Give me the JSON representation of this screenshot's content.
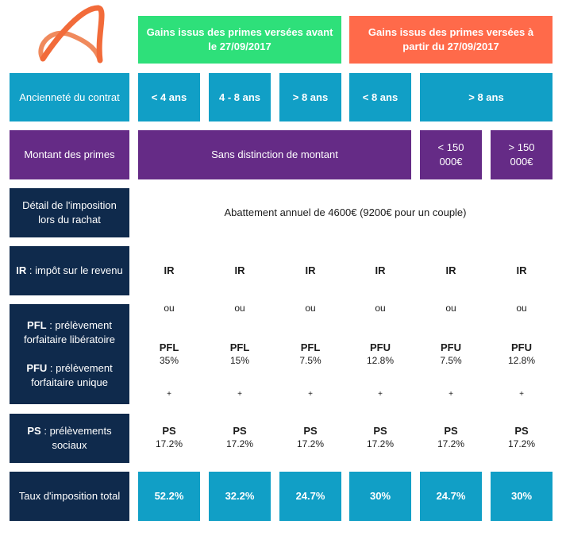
{
  "header": {
    "before": "Gains issus des primes versées avant le 27/09/2017",
    "after": "Gains issus des primes versées à partir du 27/09/2017"
  },
  "rows": {
    "anciennete": {
      "label": "Ancienneté du contrat",
      "cols": [
        "< 4 ans",
        "4 - 8 ans",
        "> 8 ans",
        "< 8 ans",
        "> 8 ans"
      ]
    },
    "montant": {
      "label": "Montant des primes",
      "merged": "Sans distinction de montant",
      "lt": "< 150 000€",
      "gt": "> 150 000€"
    },
    "detail": {
      "label": "Détail de l'imposition lors du rachat",
      "value": "Abattement annuel de 4600€ (9200€ pour un couple)"
    },
    "ir": {
      "abbr": "IR",
      "desc": " : impôt sur le revenu",
      "cols": [
        "IR",
        "IR",
        "IR",
        "IR",
        "IR",
        "IR"
      ],
      "ou": "ou"
    },
    "pfl_pfu": {
      "pfl_abbr": "PFL",
      "pfl_desc": " : prélèvement forfaitaire libératoire",
      "pfu_abbr": "PFU",
      "pfu_desc": " : prélèvement forfaitaire unique",
      "cols": [
        {
          "k": "PFL",
          "v": "35%"
        },
        {
          "k": "PFL",
          "v": "15%"
        },
        {
          "k": "PFL",
          "v": "7.5%"
        },
        {
          "k": "PFU",
          "v": "12.8%"
        },
        {
          "k": "PFU",
          "v": "7.5%"
        },
        {
          "k": "PFU",
          "v": "12.8%"
        }
      ],
      "plus": "+"
    },
    "ps": {
      "abbr": "PS",
      "desc": " : prélèvements sociaux",
      "cols": [
        {
          "k": "PS",
          "v": "17.2%"
        },
        {
          "k": "PS",
          "v": "17.2%"
        },
        {
          "k": "PS",
          "v": "17.2%"
        },
        {
          "k": "PS",
          "v": "17.2%"
        },
        {
          "k": "PS",
          "v": "17.2%"
        },
        {
          "k": "PS",
          "v": "17.2%"
        }
      ]
    },
    "taux": {
      "label": "Taux d'imposition total",
      "cols": [
        "52.2%",
        "32.2%",
        "24.7%",
        "30%",
        "24.7%",
        "30%"
      ]
    }
  },
  "colors": {
    "green": "#2ee07a",
    "orange": "#ff6a4a",
    "blue": "#119fc6",
    "purple": "#652b86",
    "navy": "#0f2a4c",
    "logo": "#f08a5d"
  }
}
